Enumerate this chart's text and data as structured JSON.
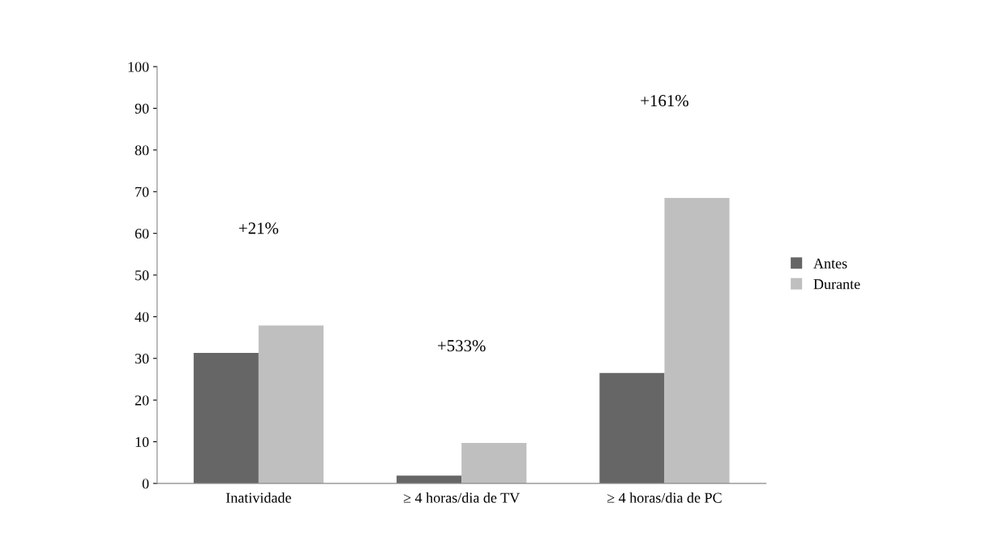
{
  "chart_data": {
    "type": "bar",
    "categories": [
      "Inatividade",
      "≥ 4 horas/dia de TV",
      "≥ 4 horas/dia de PC"
    ],
    "series": [
      {
        "name": "Antes",
        "color": "#666666",
        "values": [
          31.3,
          1.9,
          26.5
        ]
      },
      {
        "name": "Durante",
        "color": "#bfbfbf",
        "values": [
          37.9,
          9.7,
          68.5
        ]
      }
    ],
    "ylim": [
      0,
      100
    ],
    "yticks": [
      0,
      10,
      20,
      30,
      40,
      50,
      60,
      70,
      80,
      90,
      100
    ],
    "grid": false,
    "legend": "right",
    "annotations": [
      "+21%",
      "+533%",
      "+161%"
    ]
  }
}
